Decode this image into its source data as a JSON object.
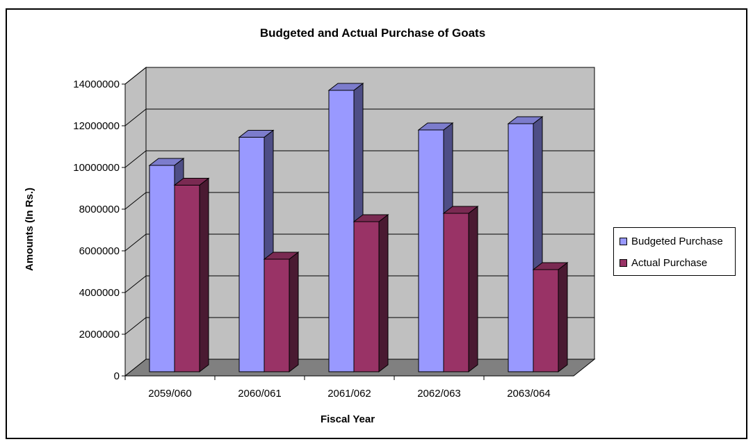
{
  "chart_data": {
    "type": "bar",
    "title": "Budgeted and Actual Purchase of Goats",
    "xlabel": "Fiscal Year",
    "ylabel": "Amounts (In Rs.)",
    "ylim": [
      0,
      14000000
    ],
    "yticks": [
      "0",
      "2000000",
      "4000000",
      "6000000",
      "8000000",
      "10000000",
      "12000000",
      "14000000"
    ],
    "grid": true,
    "legend_position": "right",
    "categories": [
      "2059/060",
      "2060/061",
      "2061/062",
      "2062/063",
      "2063/064"
    ],
    "series": [
      {
        "name": "Budgeted Purchase",
        "values": [
          10100000,
          11450000,
          13700000,
          11800000,
          12100000
        ],
        "color": "#9999ff"
      },
      {
        "name": "Actual Purchase",
        "values": [
          9150000,
          5600000,
          7400000,
          7800000,
          5100000
        ],
        "color": "#993366"
      }
    ]
  },
  "colors": {
    "wall": "#c0c0c0",
    "floor": "#808080",
    "budgeted_side": "#4e4e86",
    "budgeted_top": "#7c7ccc",
    "actual_side": "#4a1a32",
    "actual_top": "#7a2a52"
  }
}
